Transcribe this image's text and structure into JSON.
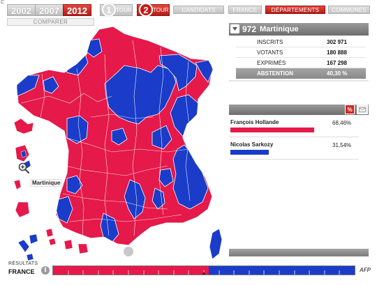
{
  "app": {
    "corner_mark": "C"
  },
  "years": [
    {
      "label": "2002",
      "active": false
    },
    {
      "label": "2007",
      "active": false
    },
    {
      "label": "2012",
      "active": true
    }
  ],
  "compare_label": "COMPARER",
  "tours": [
    {
      "number": "1",
      "label": "TOUR",
      "active": false
    },
    {
      "number": "2",
      "label": "TOUR",
      "active": true
    }
  ],
  "nav": {
    "candidats": "CANDIDATS",
    "france": "FRANCE",
    "departements": "DÉPARTEMENTS",
    "communes": "COMMUNES",
    "active": "departements"
  },
  "map": {
    "hover_label": "Martinique",
    "colors": {
      "hollande": "#e5194a",
      "sarkozy": "#1a3cc9",
      "border": "#ffffff"
    }
  },
  "department": {
    "code": "972",
    "name": "Martinique",
    "stats": [
      {
        "label": "INSCRITS",
        "value": "302 971"
      },
      {
        "label": "VOTANTS",
        "value": "180 888"
      },
      {
        "label": "EXPRIMÉS",
        "value": "167 298"
      }
    ],
    "abstention": {
      "label": "ABSTENTION",
      "value": "40,30 %"
    }
  },
  "results_controls": {
    "percent_label": "%"
  },
  "candidates": [
    {
      "name": "François Hollande",
      "pct": "68,46%",
      "share": 0.6846,
      "color": "#e5194a"
    },
    {
      "name": "Nicolas Sarkozy",
      "pct": "31,54%",
      "share": 0.3154,
      "color": "#1a3cc9"
    }
  ],
  "footer": {
    "results_label": "RÉSULTATS",
    "scope": "FRANCE",
    "info_glyph": "i",
    "national_split": {
      "hollande_share": 0.5164,
      "sarkozy_share": 0.4836
    },
    "brand": "AFP"
  }
}
